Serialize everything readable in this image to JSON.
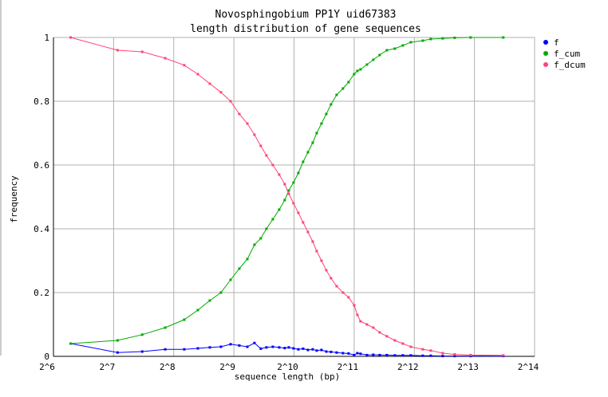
{
  "chart_data": {
    "type": "line",
    "title": [
      "Novosphingobium PP1Y uid67383",
      "length distribution of gene sequences"
    ],
    "xlabel": "sequence length (bp)",
    "ylabel": "frequency",
    "xscale": "log2",
    "xlim": [
      64,
      16384
    ],
    "ylim": [
      0,
      1
    ],
    "xticks": [
      64,
      128,
      256,
      512,
      1024,
      2048,
      4096,
      8192,
      16384
    ],
    "xtick_labels": [
      "2^6",
      "2^7",
      "2^8",
      "2^9",
      "2^10",
      "2^11",
      "2^12",
      "2^13",
      "2^14"
    ],
    "yticks": [
      0,
      0.2,
      0.4,
      0.6,
      0.8,
      1
    ],
    "ytick_labels": [
      "0",
      "0.2",
      "0.4",
      "0.6",
      "0.8",
      "1"
    ],
    "grid": true,
    "legend": "right",
    "x": [
      78,
      134,
      178,
      232,
      289,
      338,
      388,
      441,
      493,
      545,
      598,
      649,
      698,
      745,
      802,
      863,
      920,
      964,
      1018,
      1076,
      1137,
      1202,
      1270,
      1330,
      1405,
      1485,
      1568,
      1673,
      1800,
      1920,
      2048,
      2125,
      2203,
      2373,
      2553,
      2748,
      2985,
      3273,
      3588,
      3934,
      4518,
      4950,
      5683,
      6522,
      7835,
      11424
    ],
    "series": [
      {
        "name": "f",
        "color": "#0000ff",
        "values": [
          0.04,
          0.012,
          0.015,
          0.022,
          0.022,
          0.025,
          0.028,
          0.03,
          0.038,
          0.034,
          0.03,
          0.042,
          0.024,
          0.028,
          0.03,
          0.028,
          0.026,
          0.028,
          0.025,
          0.022,
          0.024,
          0.02,
          0.022,
          0.018,
          0.02,
          0.015,
          0.014,
          0.012,
          0.01,
          0.009,
          0.004,
          0.01,
          0.008,
          0.004,
          0.005,
          0.004,
          0.004,
          0.003,
          0.003,
          0.003,
          0.002,
          0.002,
          0.001,
          0.001,
          0.001,
          0.001
        ]
      },
      {
        "name": "f_cum",
        "color": "#00aa00",
        "values": [
          0.04,
          0.05,
          0.068,
          0.09,
          0.115,
          0.145,
          0.175,
          0.2,
          0.24,
          0.275,
          0.305,
          0.35,
          0.37,
          0.4,
          0.43,
          0.46,
          0.49,
          0.52,
          0.545,
          0.575,
          0.61,
          0.64,
          0.67,
          0.7,
          0.73,
          0.76,
          0.79,
          0.82,
          0.84,
          0.86,
          0.885,
          0.895,
          0.9,
          0.915,
          0.93,
          0.945,
          0.96,
          0.965,
          0.975,
          0.985,
          0.99,
          0.995,
          0.997,
          0.999,
          1.0,
          1.0
        ]
      },
      {
        "name": "f_dcum",
        "color": "#ff4477",
        "values": [
          1.0,
          0.96,
          0.955,
          0.935,
          0.913,
          0.885,
          0.855,
          0.828,
          0.8,
          0.76,
          0.73,
          0.695,
          0.66,
          0.63,
          0.6,
          0.57,
          0.54,
          0.51,
          0.48,
          0.45,
          0.42,
          0.39,
          0.36,
          0.33,
          0.3,
          0.27,
          0.245,
          0.22,
          0.2,
          0.185,
          0.16,
          0.13,
          0.11,
          0.1,
          0.09,
          0.075,
          0.063,
          0.05,
          0.04,
          0.03,
          0.022,
          0.018,
          0.01,
          0.006,
          0.004,
          0.003
        ]
      }
    ]
  }
}
